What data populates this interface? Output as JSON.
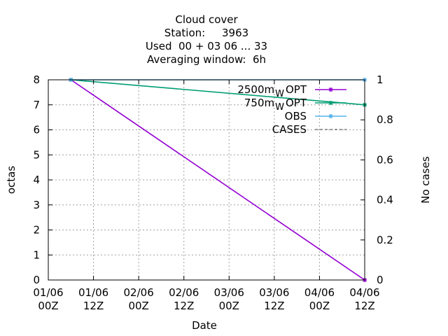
{
  "chart_data": {
    "type": "line",
    "title_lines": [
      "Cloud cover",
      "Station:     3963",
      "Used  00 + 03 06 ... 33",
      "Averaging window:  6h"
    ],
    "xlabel": "Date",
    "ylabel": "octas",
    "y2label": "No cases",
    "xlim": [
      0,
      84
    ],
    "ylim": [
      0,
      8
    ],
    "y2lim": [
      0,
      1
    ],
    "x_ticks": [
      {
        "x": 0,
        "line1": "01/06",
        "line2": "00Z"
      },
      {
        "x": 12,
        "line1": "01/06",
        "line2": "12Z"
      },
      {
        "x": 24,
        "line1": "02/06",
        "line2": "00Z"
      },
      {
        "x": 36,
        "line1": "02/06",
        "line2": "12Z"
      },
      {
        "x": 48,
        "line1": "03/06",
        "line2": "00Z"
      },
      {
        "x": 60,
        "line1": "03/06",
        "line2": "12Z"
      },
      {
        "x": 72,
        "line1": "04/06",
        "line2": "00Z"
      },
      {
        "x": 84,
        "line1": "04/06",
        "line2": "12Z"
      }
    ],
    "y_ticks": [
      "0",
      "1",
      "2",
      "3",
      "4",
      "5",
      "6",
      "7",
      "8"
    ],
    "y2_ticks": [
      "0",
      "0.2",
      "0.4",
      "0.6",
      "0.8",
      "1"
    ],
    "grid": true,
    "legend_position": "top-right",
    "series": [
      {
        "name": "2500m",
        "sub": "W",
        "suffix": "OPT",
        "color": "#9400d3",
        "axis": "y",
        "x": [
          6,
          84
        ],
        "values": [
          8,
          0
        ]
      },
      {
        "name": "750m",
        "sub": "W",
        "suffix": "OPT",
        "color": "#009e73",
        "axis": "y",
        "x": [
          6,
          84
        ],
        "values": [
          8,
          7
        ]
      },
      {
        "name": "OBS",
        "sub": "",
        "suffix": "",
        "color": "#56b4e9",
        "axis": "y2",
        "x": [
          6,
          84
        ],
        "values": [
          1,
          1
        ]
      },
      {
        "name": "CASES",
        "sub": "",
        "suffix": "",
        "color": "#808080",
        "axis": "y2",
        "dashed": true,
        "x": [],
        "values": []
      }
    ]
  }
}
